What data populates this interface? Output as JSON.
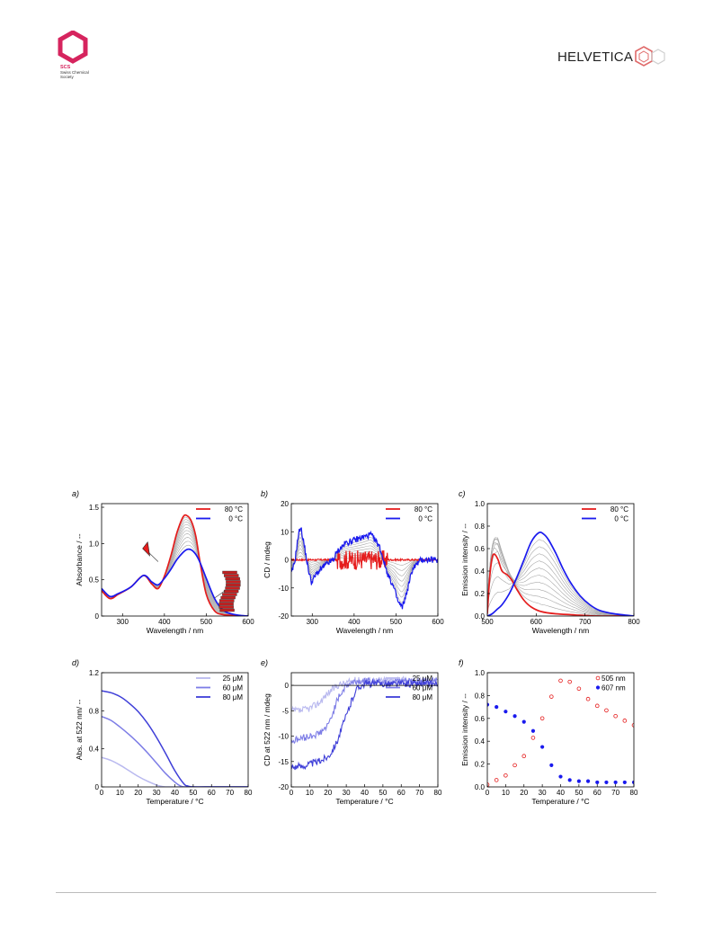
{
  "header": {
    "left_logo": {
      "icon": "scs-hexagon-logo",
      "abbr": "SCS",
      "name_line1": "Swiss Chemical",
      "name_line2": "Society",
      "color": "#d6245e"
    },
    "right_logo": {
      "icon": "helvetica-hexagon-logo",
      "wordmark": "HELVETICA",
      "color": "#222222",
      "accent": "#e06a6a"
    }
  },
  "colors": {
    "hot": "#e51d1d",
    "cold": "#1a1aee",
    "grey": "#a8a8a8",
    "c25": "#b9b9ef",
    "c60": "#7d7de6",
    "c80": "#3f3fd8"
  },
  "chart_data": [
    {
      "id": "a",
      "panel_label": "a)",
      "type": "line",
      "xlabel": "Wavelength / nm",
      "ylabel": "Absorbance / --",
      "xlim": [
        250,
        600
      ],
      "ylim": [
        0,
        1.55
      ],
      "xticks": [
        300,
        400,
        500,
        600
      ],
      "xticklabels": [
        "300",
        "400",
        "500",
        "600"
      ],
      "yticks": [
        0,
        0.5,
        1.0,
        1.5
      ],
      "yticklabels": [
        "0",
        "0.5",
        "1.0",
        "1.5"
      ],
      "legend": {
        "position": "top-right",
        "entries": [
          "80 °C",
          "0 °C"
        ]
      },
      "series": [
        {
          "name": "80 °C",
          "color": "hot",
          "x": [
            250,
            270,
            290,
            320,
            350,
            370,
            385,
            400,
            415,
            430,
            445,
            455,
            465,
            475,
            485,
            500,
            520,
            540,
            560,
            580,
            600
          ],
          "y": [
            0.35,
            0.24,
            0.3,
            0.4,
            0.56,
            0.44,
            0.38,
            0.55,
            0.82,
            1.15,
            1.37,
            1.38,
            1.3,
            1.1,
            0.75,
            0.3,
            0.07,
            0.02,
            0.01,
            0.0,
            0.0
          ]
        },
        {
          "name": "0 °C",
          "color": "cold",
          "x": [
            250,
            270,
            290,
            320,
            350,
            370,
            385,
            400,
            415,
            430,
            445,
            455,
            465,
            475,
            485,
            500,
            520,
            540,
            560,
            580,
            600
          ],
          "y": [
            0.38,
            0.27,
            0.31,
            0.4,
            0.56,
            0.47,
            0.43,
            0.52,
            0.64,
            0.78,
            0.88,
            0.92,
            0.91,
            0.85,
            0.74,
            0.52,
            0.24,
            0.08,
            0.03,
            0.01,
            0.0
          ]
        }
      ],
      "intermediate_count": 10
    },
    {
      "id": "b",
      "panel_label": "b)",
      "type": "line",
      "xlabel": "Wavelength / nm",
      "ylabel": "CD / mdeg",
      "xlim": [
        250,
        600
      ],
      "ylim": [
        -20,
        20
      ],
      "xticks": [
        300,
        400,
        500,
        600
      ],
      "xticklabels": [
        "300",
        "400",
        "500",
        "600"
      ],
      "yticks": [
        -20,
        -10,
        0,
        10,
        20
      ],
      "yticklabels": [
        "-20",
        "-10",
        "0",
        "10",
        "20"
      ],
      "legend": {
        "position": "top-right",
        "entries": [
          "80 °C",
          "0 °C"
        ]
      },
      "series": [
        {
          "name": "80 °C",
          "color": "hot",
          "x": [
            250,
            300,
            350,
            380,
            420,
            450,
            470,
            500,
            550,
            600
          ],
          "y": [
            0,
            0,
            0,
            0,
            0,
            0,
            0,
            0,
            0,
            0
          ]
        },
        {
          "name": "0 °C",
          "color": "cold",
          "x": [
            250,
            258,
            266,
            272,
            280,
            290,
            298,
            310,
            330,
            350,
            360,
            380,
            400,
            420,
            440,
            460,
            470,
            480,
            495,
            505,
            515,
            525,
            540,
            560,
            580,
            600
          ],
          "y": [
            -5,
            -1,
            8,
            12,
            6,
            -3,
            -8,
            -5,
            -2,
            0,
            3,
            6,
            7,
            8,
            9,
            5,
            0,
            -5,
            -10,
            -15,
            -17,
            -12,
            -3,
            0,
            0,
            0
          ]
        }
      ],
      "intermediate_count": 8
    },
    {
      "id": "c",
      "panel_label": "c)",
      "type": "line",
      "xlabel": "Wavelength / nm",
      "ylabel": "Emission intensity / --",
      "xlim": [
        500,
        800
      ],
      "ylim": [
        0,
        1.0
      ],
      "xticks": [
        500,
        600,
        700,
        800
      ],
      "xticklabels": [
        "500",
        "600",
        "700",
        "800"
      ],
      "yticks": [
        0,
        0.2,
        0.4,
        0.6,
        0.8,
        1.0
      ],
      "yticklabels": [
        "0.0",
        "0.2",
        "0.4",
        "0.6",
        "0.8",
        "1.0"
      ],
      "legend": {
        "position": "top-right",
        "entries": [
          "80 °C",
          "0 °C"
        ]
      },
      "series": [
        {
          "name": "80 °C",
          "color": "hot",
          "x": [
            500,
            505,
            510,
            515,
            522,
            530,
            540,
            550,
            560,
            575,
            590,
            610,
            640,
            680,
            720,
            760,
            800
          ],
          "y": [
            0.02,
            0.35,
            0.52,
            0.55,
            0.5,
            0.4,
            0.37,
            0.32,
            0.24,
            0.14,
            0.08,
            0.04,
            0.02,
            0.01,
            0.0,
            0.0,
            0.0
          ]
        },
        {
          "name": "0 °C",
          "color": "cold",
          "x": [
            500,
            510,
            520,
            530,
            545,
            560,
            575,
            590,
            605,
            615,
            625,
            640,
            655,
            670,
            690,
            710,
            730,
            760,
            800
          ],
          "y": [
            0.0,
            0.02,
            0.06,
            0.1,
            0.2,
            0.34,
            0.5,
            0.66,
            0.74,
            0.73,
            0.68,
            0.56,
            0.42,
            0.3,
            0.18,
            0.1,
            0.05,
            0.02,
            0.0
          ]
        }
      ],
      "intermediate_count": 10
    },
    {
      "id": "d",
      "panel_label": "d)",
      "type": "line",
      "xlabel": "Temperature / °C",
      "ylabel": "Abs. at 522 nm/ --",
      "xlim": [
        0,
        80
      ],
      "ylim": [
        0,
        1.2
      ],
      "xticks": [
        0,
        10,
        20,
        30,
        40,
        50,
        60,
        70,
        80
      ],
      "xticklabels": [
        "0",
        "10",
        "20",
        "30",
        "40",
        "50",
        "60",
        "70",
        "80"
      ],
      "yticks": [
        0,
        0.4,
        0.8,
        1.2
      ],
      "yticklabels": [
        "0",
        "0.4",
        "0.8",
        "1.2"
      ],
      "legend": {
        "position": "top-right",
        "entries": [
          "25 μM",
          "60 μM",
          "80 μM"
        ]
      },
      "series": [
        {
          "name": "25 μM",
          "color": "c25",
          "x": [
            0,
            5,
            10,
            15,
            20,
            25,
            30,
            33,
            35,
            40,
            50,
            60,
            70,
            80
          ],
          "y": [
            0.31,
            0.28,
            0.23,
            0.17,
            0.11,
            0.06,
            0.02,
            0.005,
            0.0,
            0.0,
            0.0,
            0.0,
            0.0,
            0.0
          ]
        },
        {
          "name": "60 μM",
          "color": "c60",
          "x": [
            0,
            5,
            10,
            15,
            20,
            25,
            30,
            35,
            40,
            43,
            45,
            50,
            60,
            70,
            80
          ],
          "y": [
            0.74,
            0.7,
            0.63,
            0.55,
            0.46,
            0.36,
            0.25,
            0.14,
            0.05,
            0.01,
            0.0,
            0.0,
            0.0,
            0.0,
            0.0
          ]
        },
        {
          "name": "80 μM",
          "color": "c80",
          "x": [
            0,
            5,
            10,
            15,
            20,
            25,
            30,
            35,
            40,
            45,
            47,
            50,
            60,
            70,
            80
          ],
          "y": [
            1.01,
            0.99,
            0.95,
            0.88,
            0.79,
            0.67,
            0.52,
            0.35,
            0.17,
            0.03,
            0.01,
            0.0,
            0.0,
            0.0,
            0.0
          ]
        }
      ]
    },
    {
      "id": "e",
      "panel_label": "e)",
      "type": "line",
      "xlabel": "Temperature / °C",
      "ylabel": "CD at 522 nm / mdeg",
      "xlim": [
        0,
        80
      ],
      "ylim": [
        -20,
        2.5
      ],
      "xticks": [
        0,
        10,
        20,
        30,
        40,
        50,
        60,
        70,
        80
      ],
      "xticklabels": [
        "0",
        "10",
        "20",
        "30",
        "40",
        "50",
        "60",
        "70",
        "80"
      ],
      "yticks": [
        -20,
        -15,
        -10,
        -5,
        0
      ],
      "yticklabels": [
        "-20",
        "-15",
        "-10",
        "-5",
        "0"
      ],
      "legend": {
        "position": "top-right",
        "entries": [
          "25 μM",
          "60 μM",
          "80 μM"
        ]
      },
      "series": [
        {
          "name": "25 μM",
          "color": "c25",
          "x": [
            0,
            5,
            10,
            15,
            20,
            25,
            30,
            35,
            40,
            50,
            60,
            70,
            80
          ],
          "y": [
            -5,
            -5,
            -4.5,
            -3.5,
            -1.5,
            0,
            0.5,
            1,
            1,
            1,
            1,
            1,
            1
          ]
        },
        {
          "name": "60 μM",
          "color": "c60",
          "x": [
            0,
            5,
            10,
            15,
            20,
            22,
            25,
            28,
            30,
            33,
            35,
            40,
            50,
            60,
            70,
            80
          ],
          "y": [
            -11,
            -10.5,
            -10,
            -9.5,
            -8,
            -6,
            -3,
            -1,
            0,
            0.5,
            0.8,
            0.8,
            0.8,
            0.8,
            0.8,
            0.8
          ]
        },
        {
          "name": "80 μM",
          "color": "c80",
          "x": [
            0,
            5,
            10,
            15,
            20,
            22,
            25,
            28,
            30,
            33,
            35,
            38,
            40,
            50,
            60,
            70,
            80
          ],
          "y": [
            -16,
            -16,
            -15.5,
            -15,
            -14,
            -13,
            -11,
            -8,
            -6,
            -3,
            -1,
            0,
            0.3,
            0.3,
            0.3,
            0.3,
            0.3
          ]
        }
      ],
      "zero_line": true
    },
    {
      "id": "f",
      "panel_label": "f)",
      "type": "scatter",
      "xlabel": "Temperature / °C",
      "ylabel": "Emission intensity / --",
      "xlim": [
        0,
        80
      ],
      "ylim": [
        0,
        1.0
      ],
      "xticks": [
        0,
        10,
        20,
        30,
        40,
        50,
        60,
        70,
        80
      ],
      "xticklabels": [
        "0",
        "10",
        "20",
        "30",
        "40",
        "50",
        "60",
        "70",
        "80"
      ],
      "yticks": [
        0,
        0.2,
        0.4,
        0.6,
        0.8,
        1.0
      ],
      "yticklabels": [
        "0.0",
        "0.2",
        "0.4",
        "0.6",
        "0.8",
        "1.0"
      ],
      "legend": {
        "position": "top-right",
        "entries": [
          "505 nm",
          "607 nm"
        ]
      },
      "series": [
        {
          "name": "505 nm",
          "color": "hot",
          "marker": "open-circle",
          "x": [
            0,
            5,
            10,
            15,
            20,
            25,
            30,
            35,
            40,
            45,
            50,
            55,
            60,
            65,
            70,
            75,
            80
          ],
          "y": [
            0.02,
            0.06,
            0.1,
            0.19,
            0.27,
            0.43,
            0.6,
            0.79,
            0.93,
            0.92,
            0.86,
            0.77,
            0.71,
            0.67,
            0.62,
            0.58,
            0.54
          ]
        },
        {
          "name": "607 nm",
          "color": "cold",
          "marker": "filled-circle",
          "x": [
            0,
            5,
            10,
            15,
            20,
            25,
            30,
            35,
            40,
            45,
            50,
            55,
            60,
            65,
            70,
            75,
            80
          ],
          "y": [
            0.72,
            0.7,
            0.66,
            0.62,
            0.57,
            0.49,
            0.35,
            0.19,
            0.09,
            0.06,
            0.05,
            0.05,
            0.04,
            0.04,
            0.04,
            0.04,
            0.04
          ]
        }
      ]
    }
  ]
}
